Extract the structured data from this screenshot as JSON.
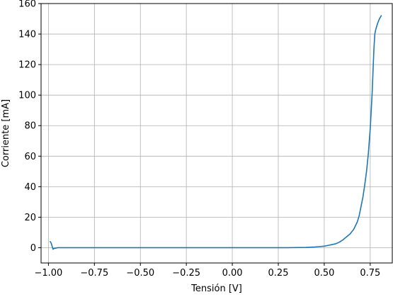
{
  "chart_data": {
    "type": "line",
    "title": "",
    "xlabel": "Tensión [V]",
    "ylabel": "Corriente [mA]",
    "xlim": [
      -1.04,
      0.87
    ],
    "ylim": [
      -10,
      160
    ],
    "grid": true,
    "x_ticks": [
      -1.0,
      -0.75,
      -0.5,
      -0.25,
      0.0,
      0.25,
      0.5,
      0.75
    ],
    "x_tick_labels": [
      "−1.00",
      "−0.75",
      "−0.50",
      "−0.25",
      "0.00",
      "0.25",
      "0.50",
      "0.75"
    ],
    "y_ticks": [
      0,
      20,
      40,
      60,
      80,
      100,
      120,
      140,
      160
    ],
    "y_tick_labels": [
      "0",
      "20",
      "40",
      "60",
      "80",
      "100",
      "120",
      "140",
      "160"
    ],
    "series": [
      {
        "color": "#1f77b4",
        "x": [
          -0.99,
          -0.985,
          -0.98,
          -0.975,
          -0.97,
          -0.95,
          -0.9,
          -0.8,
          -0.7,
          -0.6,
          -0.5,
          -0.4,
          -0.3,
          -0.2,
          -0.1,
          0.0,
          0.1,
          0.2,
          0.3,
          0.4,
          0.45,
          0.48,
          0.5,
          0.52,
          0.54,
          0.56,
          0.58,
          0.6,
          0.62,
          0.64,
          0.66,
          0.68,
          0.69,
          0.7,
          0.71,
          0.72,
          0.73,
          0.74,
          0.75,
          0.76,
          0.765,
          0.77,
          0.775,
          0.78,
          0.79,
          0.8,
          0.81
        ],
        "y": [
          4,
          3,
          1,
          -1,
          -0.5,
          0,
          0,
          0,
          0,
          0,
          0,
          0,
          0,
          0,
          0,
          0,
          0,
          0,
          0,
          0.2,
          0.5,
          0.8,
          1,
          1.5,
          2,
          2.5,
          3.5,
          5,
          7,
          9,
          12,
          17,
          21,
          27,
          33,
          41,
          50,
          62,
          78,
          100,
          115,
          130,
          140,
          143,
          147,
          150,
          152
        ]
      }
    ]
  }
}
